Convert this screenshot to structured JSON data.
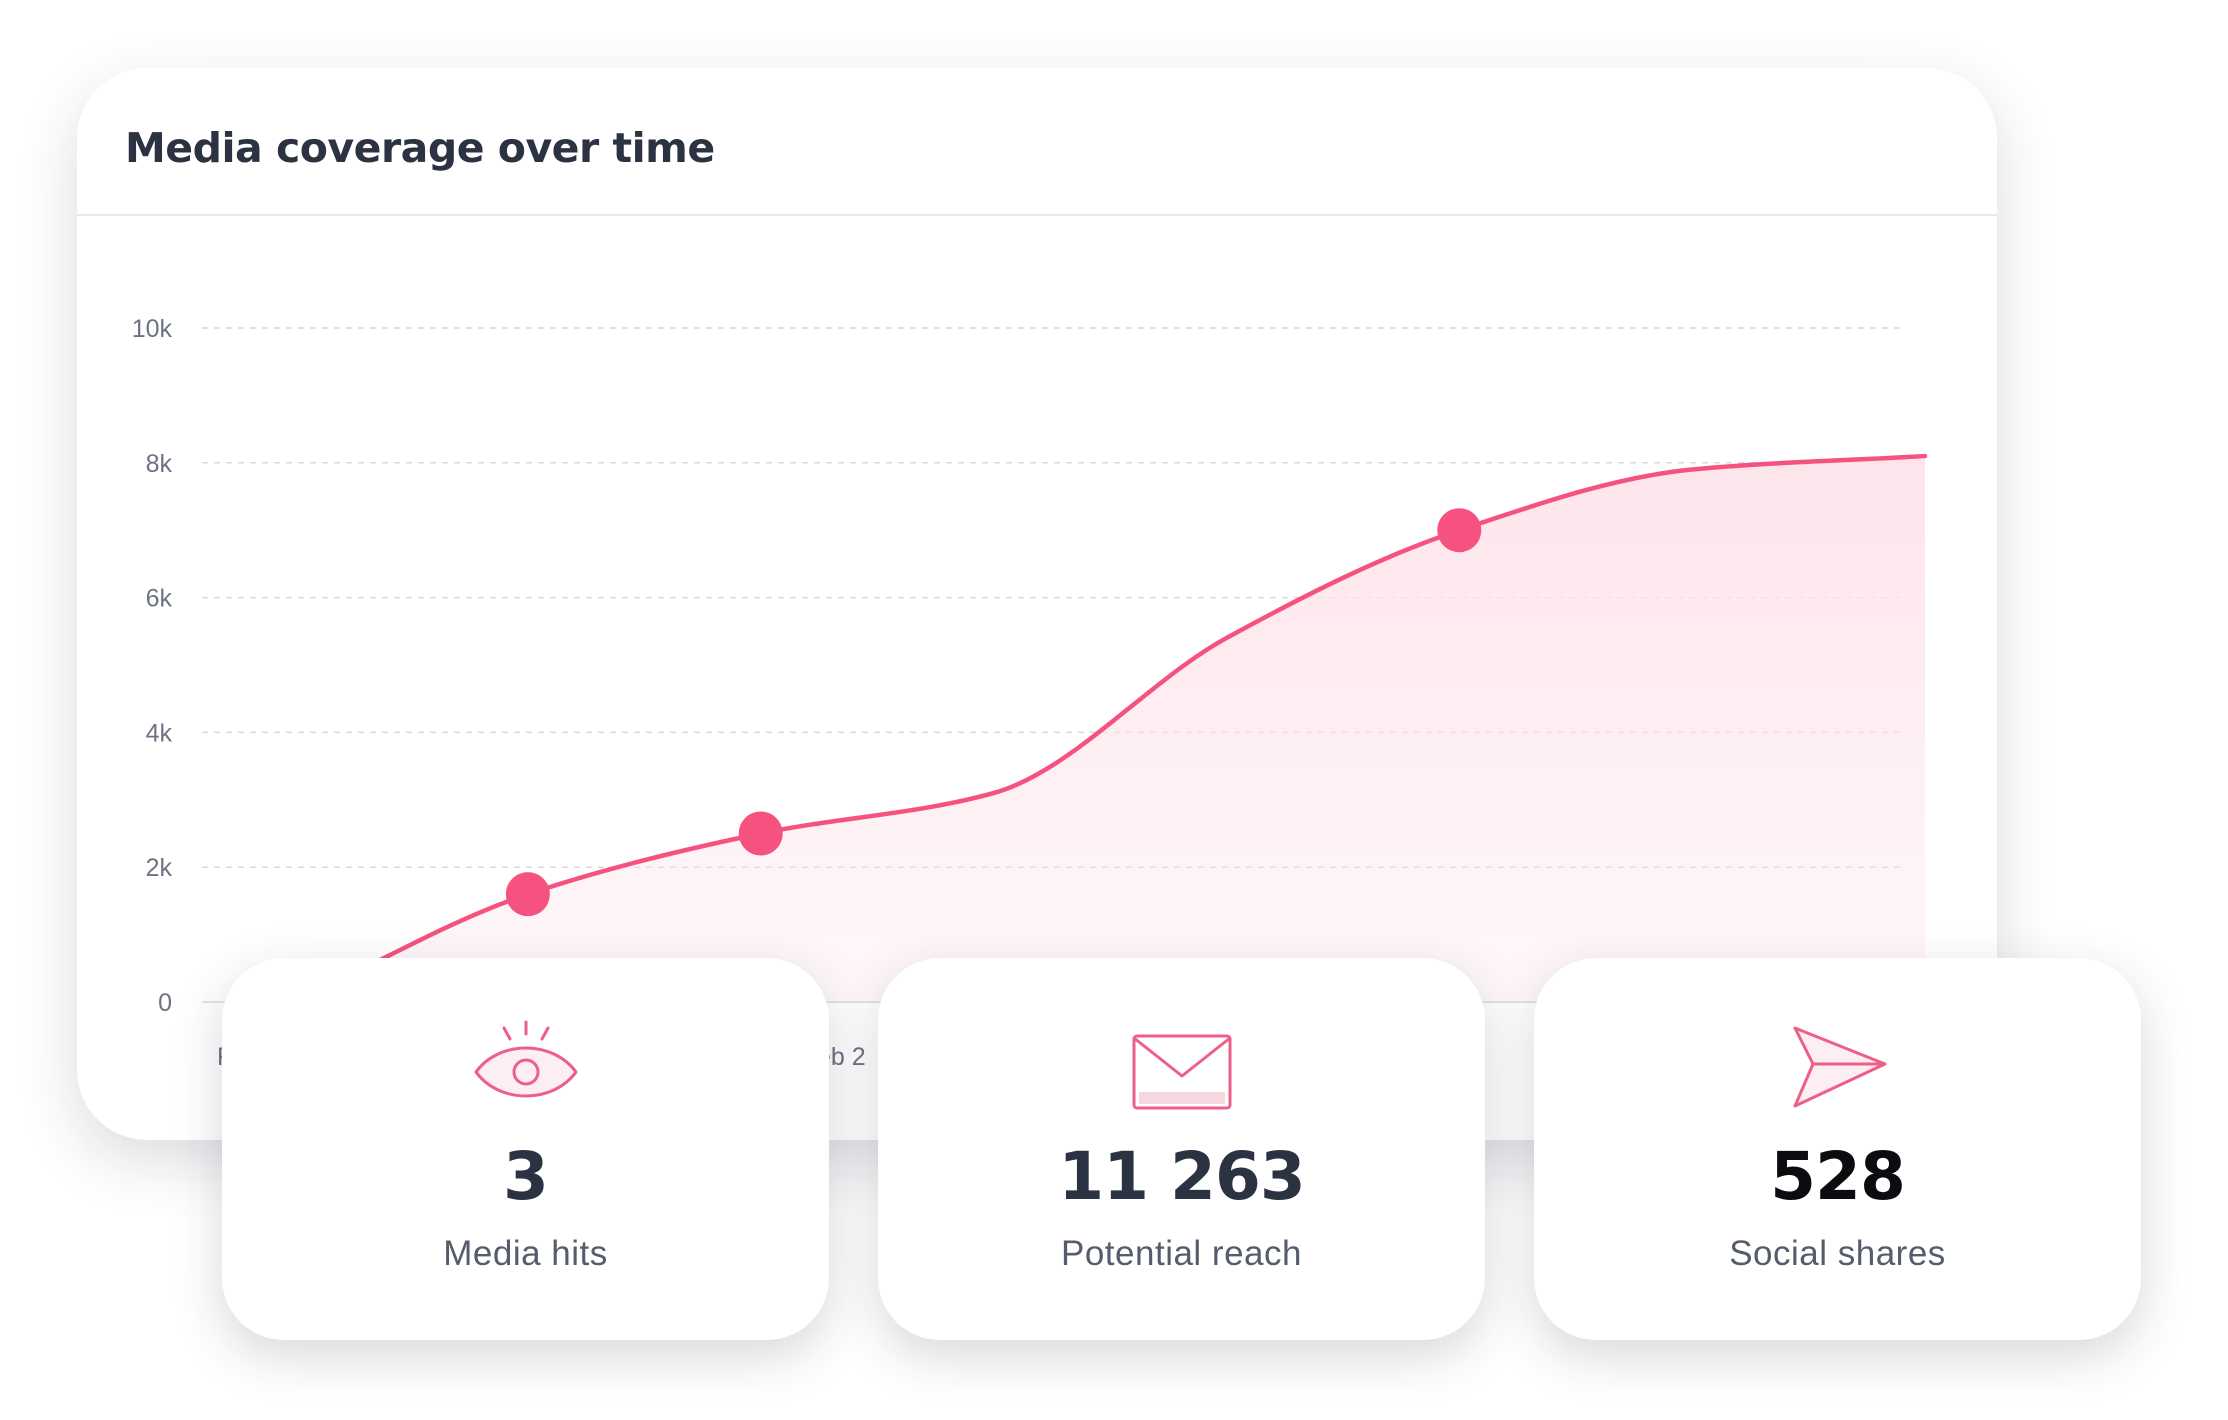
{
  "chart_data": {
    "type": "area",
    "title": "Media coverage over time",
    "xlabel": "",
    "ylabel": "",
    "ylim": [
      0,
      10000
    ],
    "y_ticks": [
      {
        "value": 0,
        "label": "0"
      },
      {
        "value": 2000,
        "label": "2k"
      },
      {
        "value": 4000,
        "label": "4k"
      },
      {
        "value": 6000,
        "label": "6k"
      },
      {
        "value": 8000,
        "label": "8k"
      },
      {
        "value": 10000,
        "label": "10k"
      }
    ],
    "x_tick_fragments": [
      "F",
      "eb 2"
    ],
    "grid": true,
    "color": "#f5527f",
    "fill_color": "#fde3ea",
    "series": [
      {
        "values": [
          0,
          1600,
          2500,
          3100,
          5400,
          7000,
          7900,
          8100
        ],
        "highlighted_points": [
          1,
          2,
          5
        ]
      }
    ]
  },
  "stats": [
    {
      "icon": "eye-icon",
      "value": "3",
      "label": "Media hits"
    },
    {
      "icon": "envelope-icon",
      "value": "11 263",
      "label": "Potential reach"
    },
    {
      "icon": "paper-plane-icon",
      "value": "528",
      "label": "Social shares"
    }
  ]
}
